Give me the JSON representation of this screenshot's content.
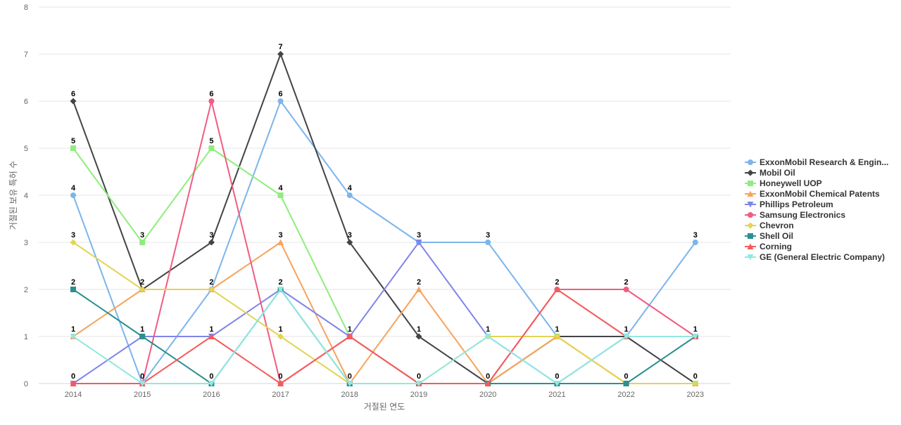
{
  "chart_data": {
    "type": "line",
    "title": "",
    "xlabel": "거절된 연도",
    "ylabel": "거절된 보유 특허 수",
    "categories": [
      "2014",
      "2015",
      "2016",
      "2017",
      "2018",
      "2019",
      "2020",
      "2021",
      "2022",
      "2023"
    ],
    "ylim": [
      0,
      8
    ],
    "yticks": [
      0,
      1,
      2,
      3,
      4,
      5,
      6,
      7,
      8
    ],
    "grid": true,
    "legend_position": "right",
    "series": [
      {
        "name": "ExxonMobil Research & Engin...",
        "color": "#7cb5ec",
        "marker": "circle",
        "values": [
          4,
          0,
          2,
          6,
          4,
          3,
          3,
          1,
          1,
          3
        ]
      },
      {
        "name": "Mobil Oil",
        "color": "#434348",
        "marker": "diamond",
        "values": [
          6,
          2,
          3,
          7,
          3,
          1,
          0,
          1,
          1,
          0
        ]
      },
      {
        "name": "Honeywell UOP",
        "color": "#90ed7d",
        "marker": "square",
        "values": [
          5,
          3,
          5,
          4,
          1,
          0,
          0,
          1,
          0,
          0
        ]
      },
      {
        "name": "ExxonMobil Chemical Patents",
        "color": "#f7a35c",
        "marker": "triangle",
        "values": [
          1,
          2,
          2,
          3,
          0,
          2,
          0,
          1,
          0,
          0
        ]
      },
      {
        "name": "Phillips Petroleum",
        "color": "#8085e9",
        "marker": "triangle-down",
        "values": [
          0,
          1,
          1,
          2,
          1,
          3,
          1,
          0,
          1,
          1
        ]
      },
      {
        "name": "Samsung Electronics",
        "color": "#f15c80",
        "marker": "circle",
        "values": [
          0,
          0,
          6,
          0,
          1,
          0,
          0,
          2,
          2,
          1
        ]
      },
      {
        "name": "Chevron",
        "color": "#e4d354",
        "marker": "diamond",
        "values": [
          3,
          2,
          2,
          1,
          0,
          0,
          1,
          1,
          0,
          0
        ]
      },
      {
        "name": "Shell Oil",
        "color": "#2b908f",
        "marker": "square",
        "values": [
          2,
          1,
          0,
          2,
          0,
          0,
          0,
          0,
          0,
          1
        ]
      },
      {
        "name": "Corning",
        "color": "#f45b5b",
        "marker": "triangle",
        "values": [
          0,
          0,
          1,
          0,
          1,
          0,
          0,
          2,
          1,
          1
        ]
      },
      {
        "name": "GE (General Electric Company)",
        "color": "#91e8e1",
        "marker": "triangle-down",
        "values": [
          1,
          0,
          0,
          2,
          0,
          0,
          1,
          0,
          1,
          1
        ]
      }
    ]
  }
}
